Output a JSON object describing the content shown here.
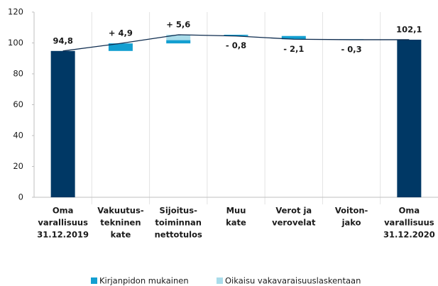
{
  "chart_data": {
    "type": "waterfall",
    "categories": [
      [
        "Oma",
        "varallisuus",
        "31.12.2019"
      ],
      [
        "Vakuutus-",
        "tekninen",
        "kate"
      ],
      [
        "Sijoitus-",
        "toiminnan",
        "nettotulos"
      ],
      [
        "Muu",
        "kate"
      ],
      [
        "Verot ja",
        "verovelat"
      ],
      [
        "Voiton-",
        "jako"
      ],
      [
        "Oma",
        "varallisuus",
        "31.12.2020"
      ]
    ],
    "totals": {
      "color": "#003865",
      "values": [
        94.8,
        null,
        null,
        null,
        null,
        null,
        102.1
      ]
    },
    "series": [
      {
        "name": "Kirjanpidon mukainen",
        "color": "#139fd1",
        "values": [
          null,
          4.9,
          2.1,
          -0.8,
          -2.1,
          -0.3,
          null
        ]
      },
      {
        "name": "Oikaisu vakavaraisuuslaskentaan",
        "color": "#a9dcea",
        "values": [
          null,
          null,
          3.5,
          null,
          null,
          null,
          null
        ]
      }
    ],
    "values": [
      94.8,
      4.9,
      5.6,
      -0.8,
      -2.1,
      -0.3,
      102.1
    ],
    "value_labels": [
      "94,8",
      "+ 4,9",
      "+ 5,6",
      "- 0,8",
      "- 2,1",
      "- 0,3",
      "102,1"
    ],
    "ylim": [
      0,
      120
    ],
    "yticks": [
      0,
      20,
      40,
      60,
      80,
      100,
      120
    ],
    "grid": true
  }
}
